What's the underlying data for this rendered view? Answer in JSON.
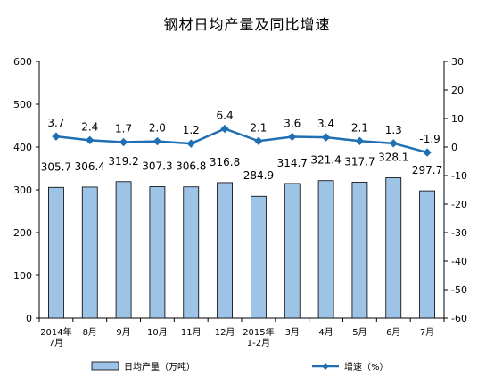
{
  "chart_data": {
    "type": "bar",
    "title": "钢材日均产量及同比增速",
    "categories": [
      "2014年|7月",
      "8月",
      "9月",
      "10月",
      "11月",
      "12月",
      "2015年|1-2月",
      "3月",
      "4月",
      "5月",
      "6月",
      "7月"
    ],
    "series": [
      {
        "name": "日均产量（万吨）",
        "type": "bar",
        "axis": "left",
        "values": [
          305.7,
          306.4,
          319.2,
          307.3,
          306.8,
          316.8,
          284.9,
          314.7,
          321.4,
          317.7,
          328.1,
          297.7
        ],
        "color": "#9dc3e6"
      },
      {
        "name": "增速（%）",
        "type": "line",
        "axis": "right",
        "values": [
          3.7,
          2.4,
          1.7,
          2.0,
          1.2,
          6.4,
          2.1,
          3.6,
          3.4,
          2.1,
          1.3,
          -1.9
        ],
        "color": "#1f6fb2"
      }
    ],
    "y_left": {
      "ylim": [
        0,
        600
      ],
      "ticks": [
        0,
        100,
        200,
        300,
        400,
        500,
        600
      ]
    },
    "y_right": {
      "ylim": [
        -60,
        30
      ],
      "ticks": [
        -60,
        -50,
        -40,
        -30,
        -20,
        -10,
        0,
        10,
        20,
        30
      ]
    },
    "grid": false,
    "legend_position": "bottom"
  }
}
